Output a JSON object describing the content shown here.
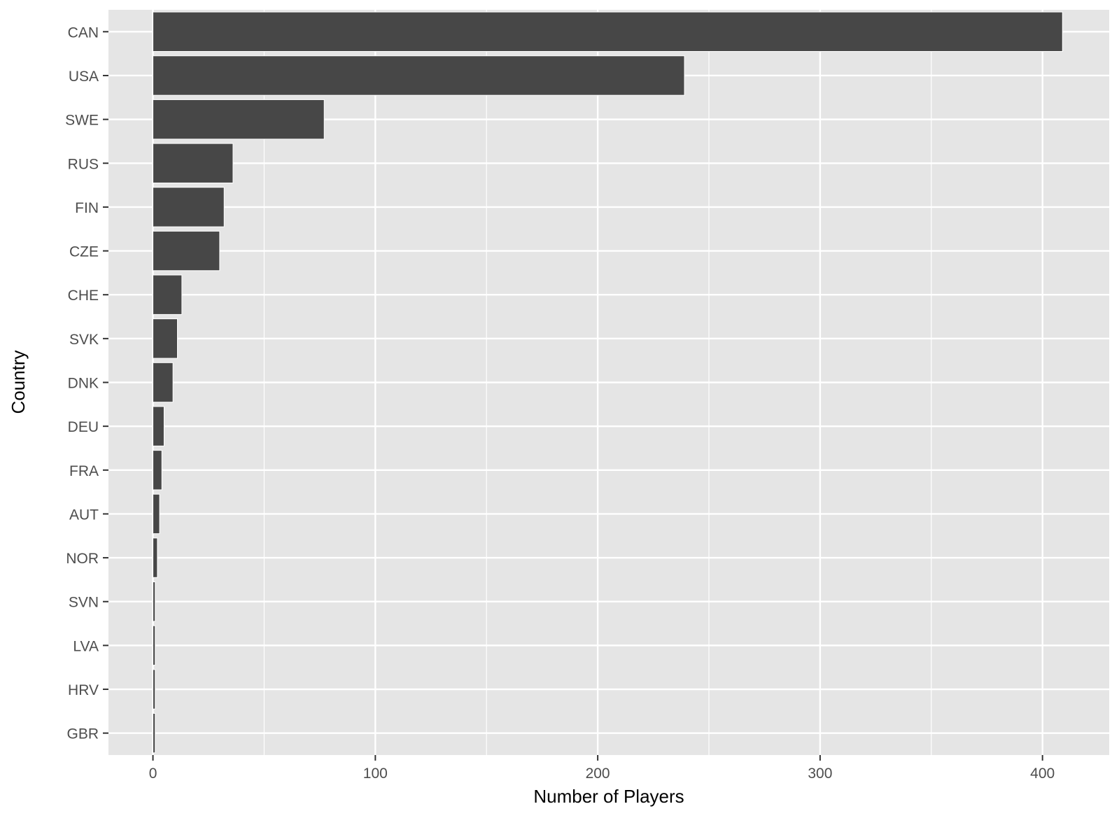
{
  "chart_data": {
    "type": "bar",
    "orientation": "horizontal",
    "title": "",
    "xlabel": "Number of Players",
    "ylabel": "Country",
    "categories": [
      "CAN",
      "USA",
      "SWE",
      "RUS",
      "FIN",
      "CZE",
      "CHE",
      "SVK",
      "DNK",
      "DEU",
      "FRA",
      "AUT",
      "NOR",
      "SVN",
      "LVA",
      "HRV",
      "GBR"
    ],
    "values": [
      409,
      239,
      77,
      36,
      32,
      30,
      13,
      11,
      9,
      5,
      4,
      3,
      2,
      1,
      1,
      1,
      1
    ],
    "xlim": [
      -20,
      430
    ],
    "xticks": [
      0,
      100,
      200,
      300,
      400
    ],
    "xtick_labels": [
      "0",
      "100",
      "200",
      "300",
      "400"
    ],
    "grid": true,
    "colors": {
      "panel": "#e5e5e5",
      "grid": "#ffffff",
      "bar": "#474747",
      "tick_text": "#4d4d4d",
      "tick_mark": "#333333",
      "title_text": "#000000"
    }
  }
}
